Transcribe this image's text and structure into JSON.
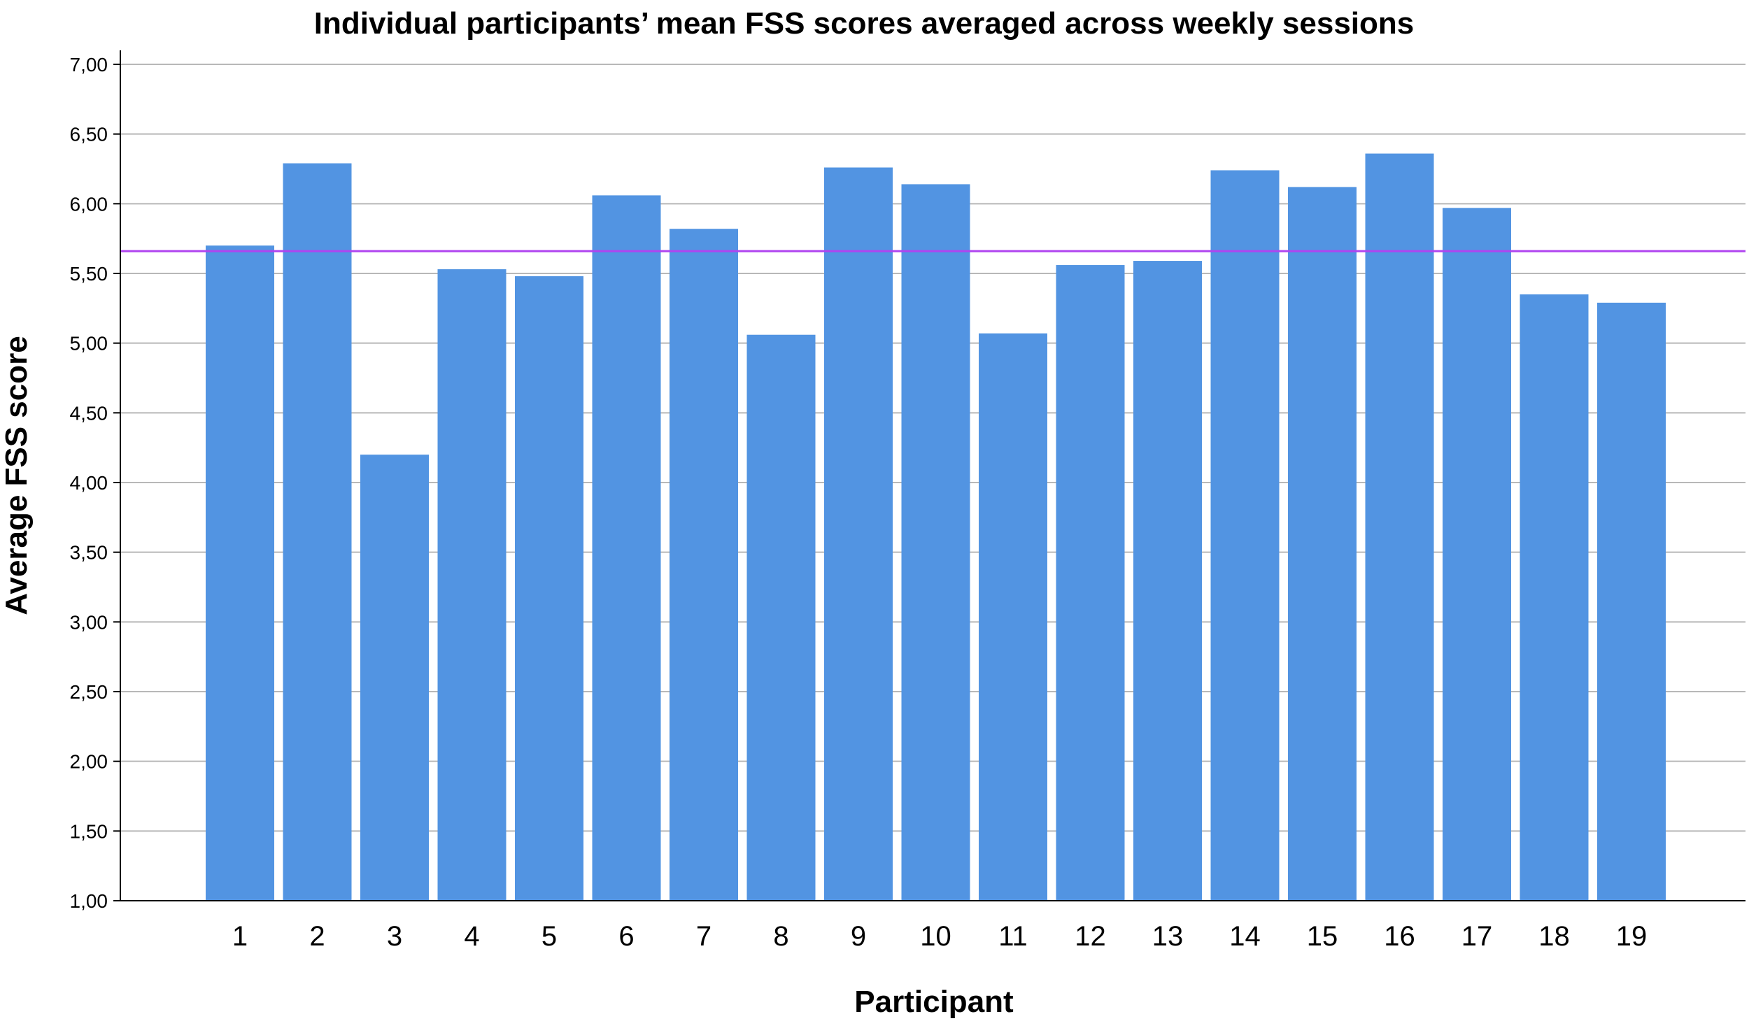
{
  "chart_data": {
    "type": "bar",
    "title": "Individual participants’ mean FSS scores averaged across weekly sessions",
    "xlabel": "Participant",
    "ylabel": "Average FSS score",
    "categories": [
      "1",
      "2",
      "3",
      "4",
      "5",
      "6",
      "7",
      "8",
      "9",
      "10",
      "11",
      "12",
      "13",
      "14",
      "15",
      "16",
      "17",
      "18",
      "19"
    ],
    "values": [
      5.7,
      6.29,
      4.2,
      5.53,
      5.48,
      6.06,
      5.82,
      5.06,
      6.26,
      6.14,
      5.07,
      5.56,
      5.59,
      6.24,
      6.12,
      6.36,
      5.97,
      5.35,
      5.29
    ],
    "ylim": [
      1.0,
      7.0
    ],
    "yticks": [
      "1,00",
      "1,50",
      "2,00",
      "2,50",
      "3,00",
      "3,50",
      "4,00",
      "4,50",
      "5,00",
      "5,50",
      "6,00",
      "6,50",
      "7,00"
    ],
    "ytick_values": [
      1.0,
      1.5,
      2.0,
      2.5,
      3.0,
      3.5,
      4.0,
      4.5,
      5.0,
      5.5,
      6.0,
      6.5,
      7.0
    ],
    "reference_line": {
      "value": 5.66,
      "color": "#b044f0"
    },
    "grid": true,
    "bar_color": "#5294e2"
  }
}
